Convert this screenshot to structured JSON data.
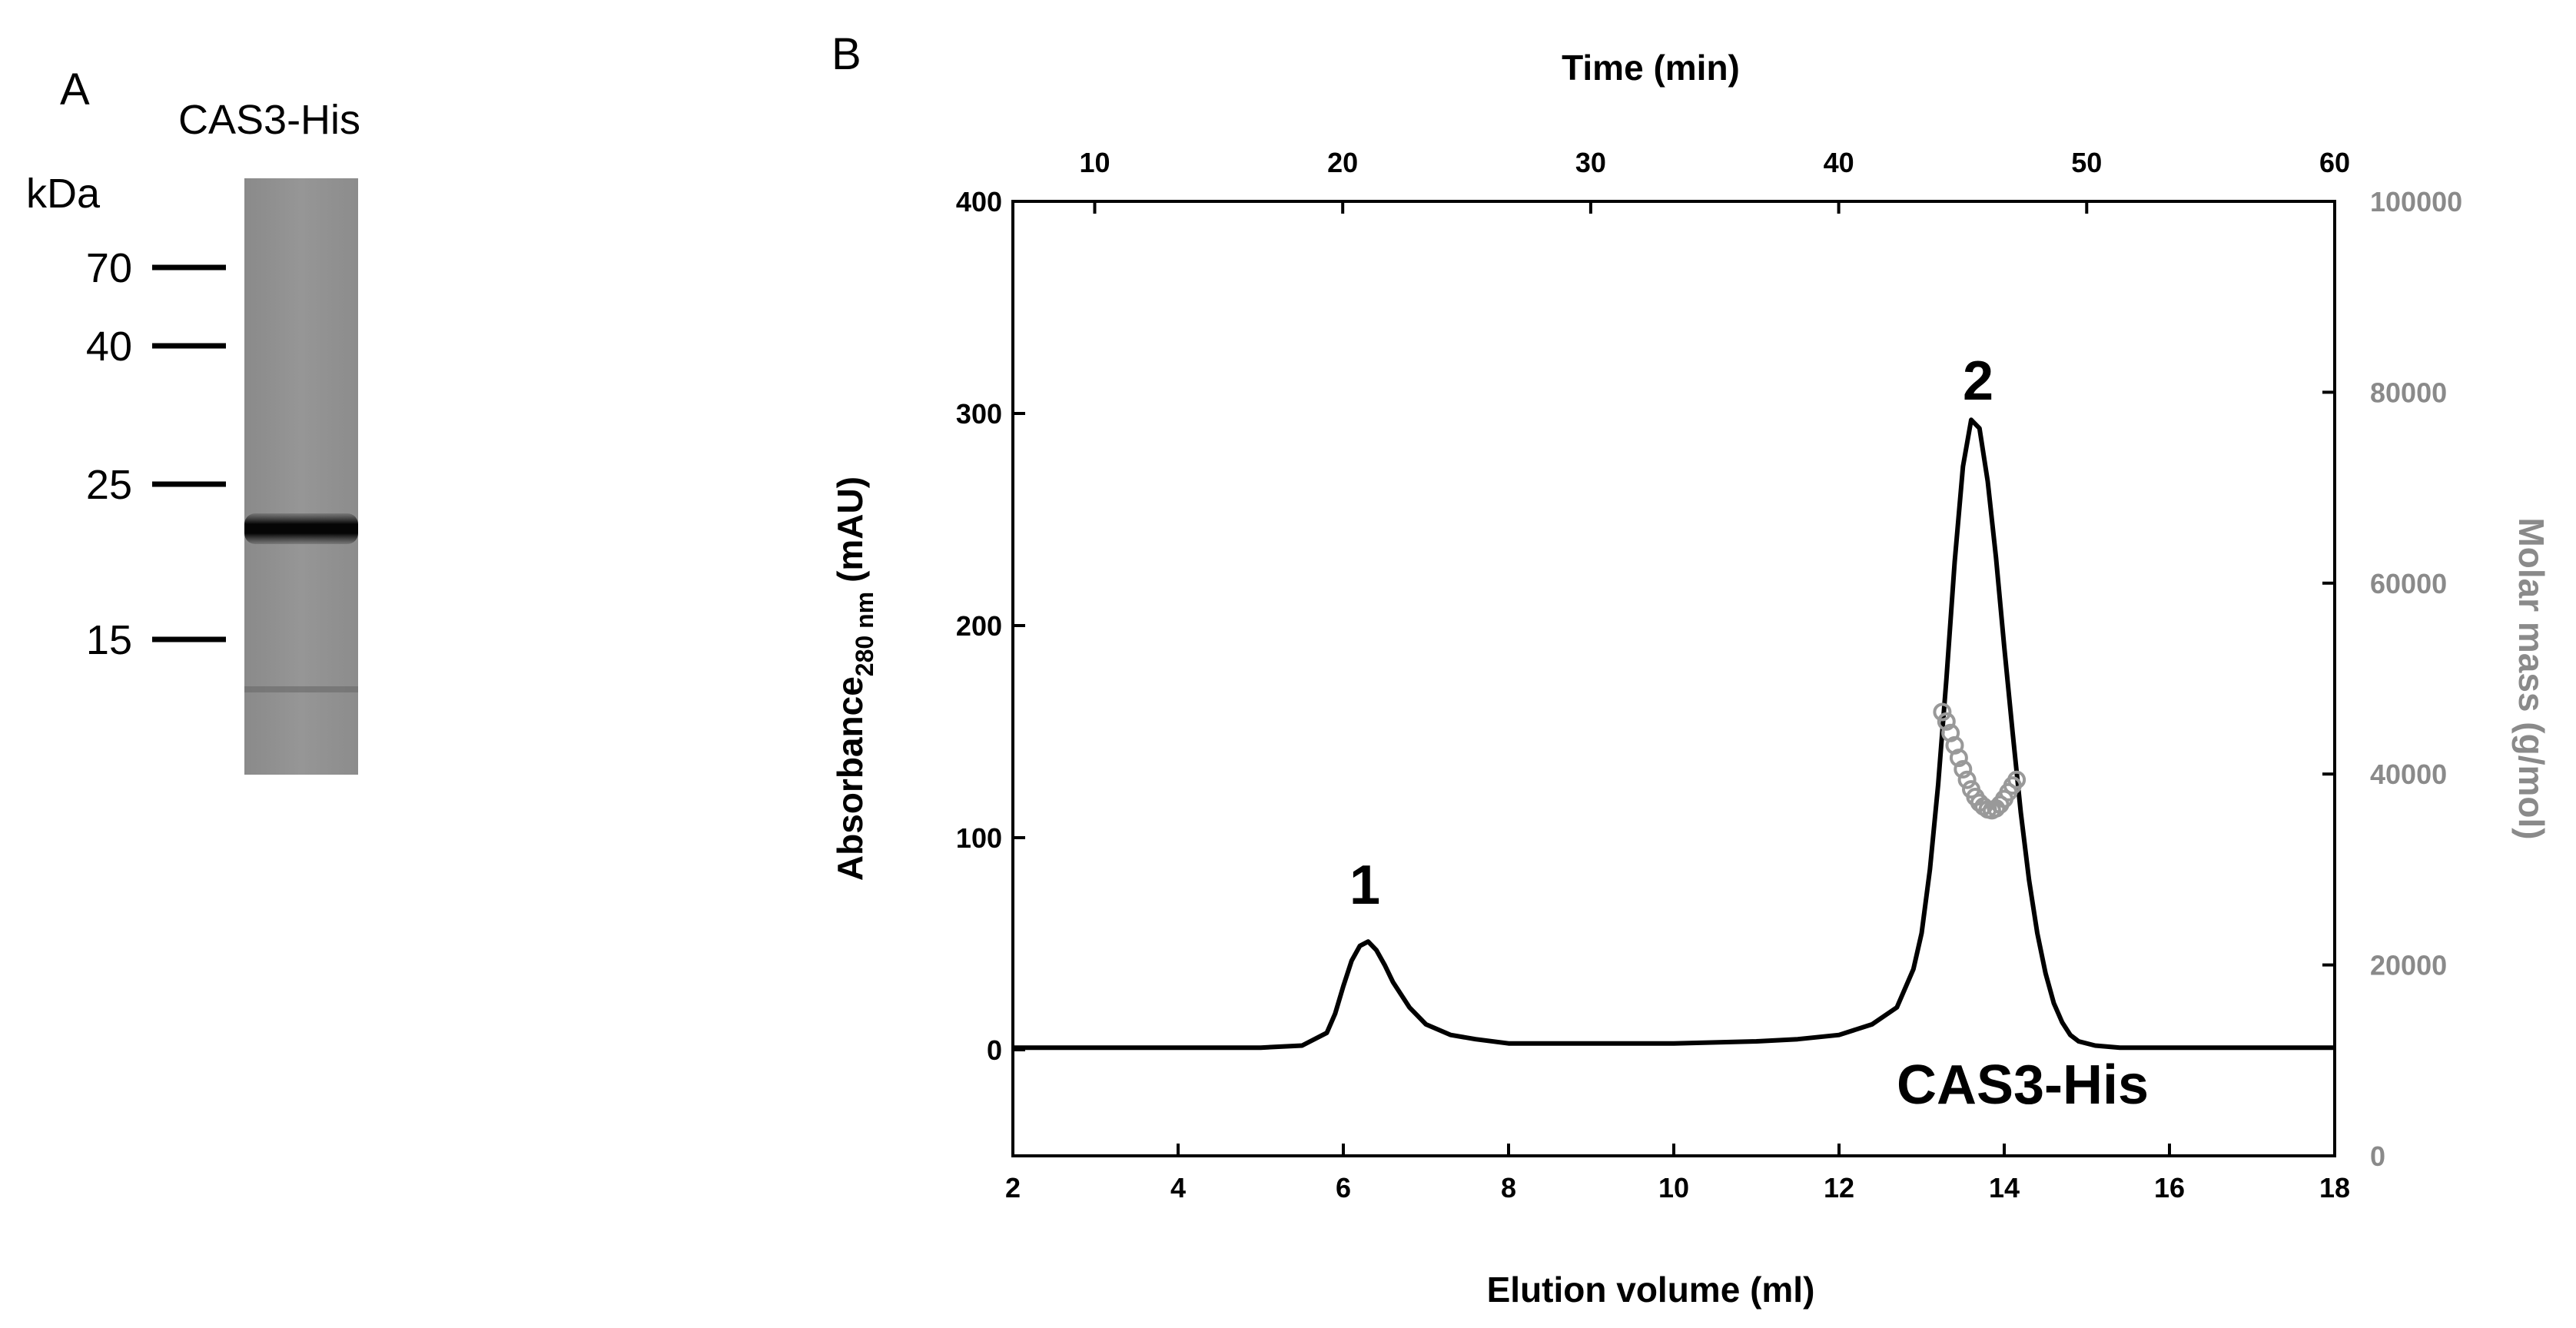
{
  "panel_a": {
    "letter": "A",
    "lane_label": "CAS3-His",
    "unit_label": "kDa",
    "markers": [
      {
        "label": "70",
        "kda": 70
      },
      {
        "label": "40",
        "kda": 40
      },
      {
        "label": "25",
        "kda": 25
      },
      {
        "label": "15",
        "kda": 15
      }
    ],
    "main_band_kda": 22
  },
  "panel_b": {
    "letter": "B",
    "peak_labels": [
      "1",
      "2"
    ],
    "species_label": "CAS3-His"
  },
  "chart_data": {
    "type": "line",
    "title": "",
    "xlabel": "Elution volume (ml)",
    "xlim": [
      2,
      18
    ],
    "xticks": [
      2,
      4,
      6,
      8,
      10,
      12,
      14,
      16,
      18
    ],
    "ylabel_main": "Absorbance",
    "ylabel_sub": "280 nm",
    "ylabel_unit": "(mAU)",
    "ylim": [
      -50,
      400
    ],
    "yticks": [
      0,
      100,
      200,
      300,
      400
    ],
    "top_axis": {
      "label": "Time (min)",
      "lim": [
        6.7,
        60
      ],
      "ticks": [
        10,
        20,
        30,
        40,
        50,
        60
      ]
    },
    "right_axis": {
      "label": "Molar mass (g/mol)",
      "lim": [
        0,
        100000
      ],
      "ticks": [
        0,
        20000,
        40000,
        60000,
        80000,
        100000
      ]
    },
    "series": [
      {
        "name": "Absorbance 280 nm",
        "color": "#000000",
        "x": [
          2.0,
          3.0,
          4.0,
          5.0,
          5.5,
          5.8,
          5.9,
          6.0,
          6.1,
          6.2,
          6.3,
          6.4,
          6.5,
          6.6,
          6.8,
          7.0,
          7.3,
          7.6,
          8.0,
          9.0,
          10.0,
          11.0,
          11.5,
          12.0,
          12.4,
          12.7,
          12.9,
          13.0,
          13.1,
          13.2,
          13.3,
          13.4,
          13.5,
          13.6,
          13.7,
          13.8,
          13.9,
          14.0,
          14.1,
          14.2,
          14.3,
          14.4,
          14.5,
          14.6,
          14.7,
          14.8,
          14.9,
          15.1,
          15.4,
          16.0,
          17.0,
          18.0
        ],
        "y": [
          1,
          1,
          1,
          1,
          2,
          8,
          17,
          30,
          42,
          49,
          51,
          47,
          40,
          32,
          20,
          12,
          7,
          5,
          3,
          3,
          3,
          4,
          5,
          7,
          12,
          20,
          38,
          55,
          85,
          125,
          175,
          230,
          275,
          297,
          293,
          268,
          232,
          190,
          150,
          112,
          80,
          55,
          36,
          22,
          13,
          7,
          4,
          2,
          1,
          1,
          1,
          1
        ]
      },
      {
        "name": "Molar mass",
        "color": "#999999",
        "axis": "right",
        "x": [
          13.25,
          13.3,
          13.35,
          13.4,
          13.45,
          13.5,
          13.55,
          13.6,
          13.65,
          13.7,
          13.75,
          13.8,
          13.85,
          13.9,
          13.95,
          14.0,
          14.05,
          14.1,
          14.15
        ],
        "y": [
          46500,
          45500,
          44300,
          43000,
          41700,
          40500,
          39400,
          38400,
          37600,
          37000,
          36600,
          36300,
          36200,
          36400,
          36800,
          37400,
          38100,
          38800,
          39400
        ]
      }
    ]
  }
}
